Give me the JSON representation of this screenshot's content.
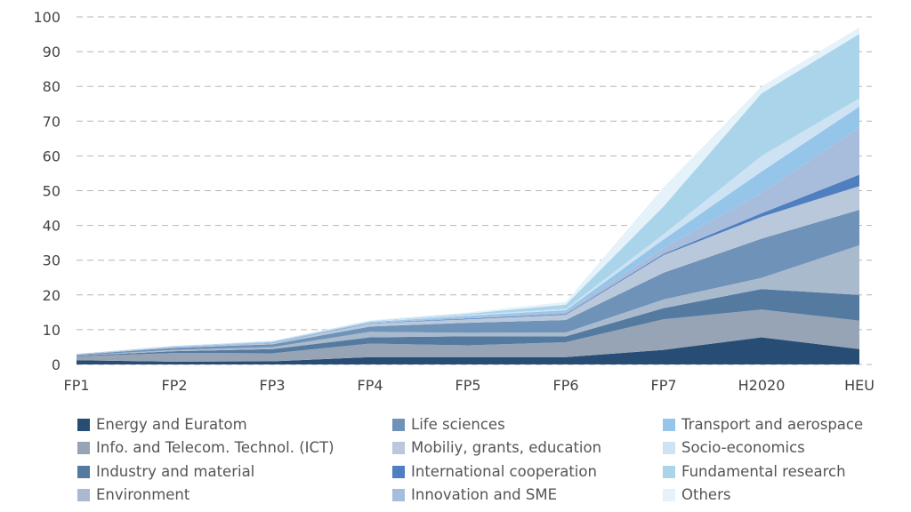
{
  "chart_data": {
    "type": "area",
    "stacked": true,
    "categories": [
      "FP1",
      "FP2",
      "FP3",
      "FP4",
      "FP5",
      "FP6",
      "FP7",
      "H2020",
      "HEU"
    ],
    "ylim": [
      0,
      100
    ],
    "yticks": [
      0,
      10,
      20,
      30,
      40,
      50,
      60,
      70,
      80,
      90,
      100
    ],
    "grid": true,
    "legend_position": "bottom",
    "series": [
      {
        "name": "Energy and Euratom",
        "color": "#284d75",
        "values": [
          1.2,
          0.8,
          0.9,
          2.1,
          2.1,
          2.1,
          4.2,
          7.8,
          4.4
        ]
      },
      {
        "name": "Info. and Telecom. Technol. (ICT)",
        "color": "#96a4b6",
        "values": [
          1.1,
          2.5,
          2.3,
          3.9,
          3.4,
          4.3,
          8.8,
          8.0,
          8.2
        ]
      },
      {
        "name": "Industry and material",
        "color": "#557aa0",
        "values": [
          0.2,
          0.5,
          1.2,
          1.8,
          2.6,
          1.7,
          3.2,
          5.9,
          7.4
        ]
      },
      {
        "name": "Environment",
        "color": "#a9bacd",
        "values": [
          0.1,
          0.4,
          0.6,
          1.6,
          1.0,
          1.1,
          2.5,
          3.2,
          14.3
        ]
      },
      {
        "name": "Life sciences",
        "color": "#6f92b8",
        "values": [
          0.2,
          0.6,
          0.8,
          1.5,
          2.9,
          3.6,
          7.7,
          11.3,
          10.2
        ]
      },
      {
        "name": "Mobiliy, grants, education",
        "color": "#b9c8db",
        "values": [
          0.1,
          0.2,
          0.3,
          0.9,
          1.0,
          1.5,
          5.1,
          6.3,
          6.8
        ]
      },
      {
        "name": "International cooperation",
        "color": "#4f7fc0",
        "values": [
          0,
          0,
          0.1,
          0.1,
          0.2,
          0.2,
          0.3,
          1.0,
          3.3
        ]
      },
      {
        "name": "Innovation and SME",
        "color": "#a8bcdc",
        "values": [
          0.1,
          0.1,
          0.1,
          0.1,
          0.4,
          0.6,
          1.7,
          5.9,
          13.6
        ]
      },
      {
        "name": "Transport and aerospace",
        "color": "#95c6ea",
        "values": [
          0,
          0.1,
          0.2,
          0.2,
          0.4,
          0.5,
          2.5,
          6.1,
          6.0
        ]
      },
      {
        "name": "Socio-economics",
        "color": "#cde2f2",
        "values": [
          0,
          0,
          0.1,
          0.2,
          0.3,
          0.4,
          1.5,
          4.5,
          2.4
        ]
      },
      {
        "name": "Fundamental research",
        "color": "#aad4ea",
        "values": [
          0,
          0.1,
          0.1,
          0.1,
          0.3,
          1.2,
          8.0,
          18.0,
          18.5
        ]
      },
      {
        "name": "Others",
        "color": "#e5f2fa",
        "values": [
          0.1,
          0.1,
          0.1,
          0.2,
          0.4,
          0.8,
          5.5,
          2.0,
          1.9
        ]
      }
    ]
  }
}
